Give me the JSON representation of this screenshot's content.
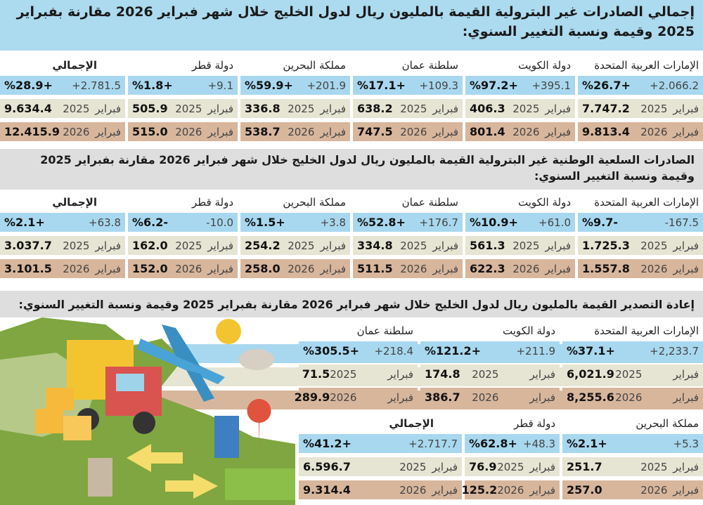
{
  "labels": {
    "month": "فبراير",
    "y2025": "2025",
    "y2026": "2026"
  },
  "section1": {
    "title": "إجمالي الصادرات غير البترولية القيمة بالمليون ريال لدول الخليج خلال شهر فبراير 2026 مقارنة بفبراير 2025 وقيمة ونسبة التغيير السنوي:",
    "columns": [
      {
        "name": "الإمارات العربية المتحدة",
        "change": "2.066.2+",
        "pct": "%26.7+",
        "v2025": "7.747.2",
        "v2026": "9.813.4"
      },
      {
        "name": "دولة الكويت",
        "change": "395.1+",
        "pct": "%97.2+",
        "v2025": "406.3",
        "v2026": "801.4"
      },
      {
        "name": "سلطنة عمان",
        "change": "109.3+",
        "pct": "%17.1+",
        "v2025": "638.2",
        "v2026": "747.5"
      },
      {
        "name": "مملكة البحرين",
        "change": "201.9+",
        "pct": "%59.9+",
        "v2025": "336.8",
        "v2026": "538.7"
      },
      {
        "name": "دولة قطر",
        "change": "9.1+",
        "pct": "%1.8+",
        "v2025": "505.9",
        "v2026": "515.0"
      },
      {
        "name": "الإجمالي",
        "change": "2.781.5+",
        "pct": "%28.9+",
        "v2025": "9.634.4",
        "v2026": "12.415.9"
      }
    ]
  },
  "section2": {
    "title": "الصادرات السلعية الوطنية غير البترولية القيمة بالمليون ريال لدول الخليج خلال شهر فبراير 2026 مقارنة بفبراير 2025 وقيمة ونسبة التغيير السنوي:",
    "columns": [
      {
        "name": "الإمارات العربية المتحدة",
        "change": "167.5-",
        "pct": "%9.7-",
        "v2025": "1.725.3",
        "v2026": "1.557.8"
      },
      {
        "name": "دولة الكويت",
        "change": "61.0+",
        "pct": "%10.9+",
        "v2025": "561.3",
        "v2026": "622.3"
      },
      {
        "name": "سلطنة عمان",
        "change": "176.7+",
        "pct": "%52.8+",
        "v2025": "334.8",
        "v2026": "511.5"
      },
      {
        "name": "مملكة البحرين",
        "change": "3.8+",
        "pct": "%1.5+",
        "v2025": "254.2",
        "v2026": "258.0"
      },
      {
        "name": "دولة قطر",
        "change": "10.0-",
        "pct": "%6.2-",
        "v2025": "162.0",
        "v2026": "152.0"
      },
      {
        "name": "الإجمالي",
        "change": "63.8+",
        "pct": "%2.1+",
        "v2025": "3.037.7",
        "v2026": "3.101.5"
      }
    ]
  },
  "section3": {
    "title": "إعادة التصدير القيمة بالمليون ريال لدول الخليج خلال شهر فبراير 2026 مقارنة بفبراير 2025 وقيمة ونسبة التغيير السنوي:",
    "columns": [
      {
        "name": "الإمارات العربية المتحدة",
        "change": "2,233.7+",
        "pct": "%37.1+",
        "v2025": "6,021.9",
        "v2026": "8,255.6"
      },
      {
        "name": "دولة الكويت",
        "change": "211.9+",
        "pct": "%121.2+",
        "v2025": "174.8",
        "v2026": "386.7"
      },
      {
        "name": "سلطنة عمان",
        "change": "218.4+",
        "pct": "%305.5+",
        "v2025": "71.5",
        "v2026": "289.9"
      },
      {
        "name": "مملكة البحرين",
        "change": "5.3+",
        "pct": "%2.1+",
        "v2025": "251.7",
        "v2026": "257.0"
      },
      {
        "name": "دولة قطر",
        "change": "48.3+",
        "pct": "%62.8+",
        "v2025": "76.9",
        "v2026": "125.2"
      },
      {
        "name": "الإجمالي",
        "change": "2.717.7+",
        "pct": "%41.2+",
        "v2025": "6.596.7",
        "v2026": "9.314.4"
      }
    ]
  },
  "colors": {
    "change_row": "#a8d8ef",
    "row_2025": "#e6e5d3",
    "row_2026": "#d8b69c",
    "title_band": "#acdaef",
    "subtitle_band": "#dedede"
  }
}
